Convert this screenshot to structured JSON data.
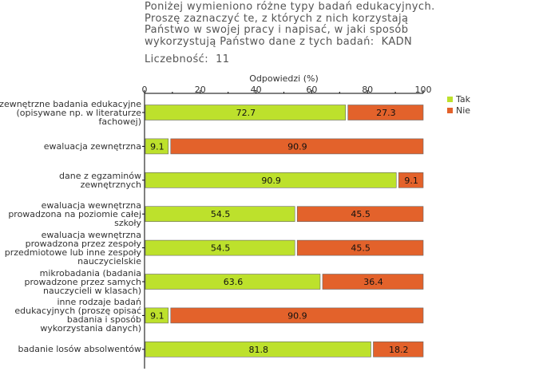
{
  "title_lines": [
    "Poniżej wymieniono różne typy badań edukacyjnych.",
    "Proszę zaznaczyć te, z których z nich korzystają",
    "Państwo w swojej pracy i napisać, w jaki sposób",
    "wykorzystują Państwo dane z tych badań:  KADN"
  ],
  "count_label": "Liczebność:",
  "count_value": "11",
  "colors": {
    "tak": "#bde12c",
    "nie": "#e3622b",
    "axis": "#000000",
    "grid": "#cccccc"
  },
  "chart_data": {
    "type": "bar",
    "orientation": "horizontal",
    "stacked": true,
    "xlabel": "Odpowiedzi (%)",
    "xlim": [
      0,
      100
    ],
    "xticks": [
      0,
      20,
      40,
      60,
      80,
      100
    ],
    "legend_position": "right",
    "categories": [
      [
        "zewnętrzne badania edukacyjne",
        "(opisywane np. w literaturze",
        "fachowej)"
      ],
      [
        "ewaluacja zewnętrzna"
      ],
      [
        "dane z egzaminów",
        "zewnętrznych"
      ],
      [
        "ewaluacja wewnętrzna",
        "prowadzona na poziomie całej",
        "szkoły"
      ],
      [
        "ewaluacja wewnętrzna",
        "prowadzona przez zespoły",
        "przedmiotowe lub inne zespoły",
        "nauczycielskie"
      ],
      [
        "mikrobadania (badania",
        "prowadzone przez samych",
        "nauczycieli w klasach)"
      ],
      [
        "inne rodzaje badań",
        "edukacyjnych (proszę opisać",
        "badania i sposób",
        "wykorzystania danych)"
      ],
      [
        "badanie losów absolwentów"
      ]
    ],
    "series": [
      {
        "name": "Tak",
        "values": [
          72.7,
          9.1,
          90.9,
          54.5,
          54.5,
          63.6,
          9.1,
          81.8
        ]
      },
      {
        "name": "Nie",
        "values": [
          27.3,
          90.9,
          9.1,
          45.5,
          45.5,
          36.4,
          90.9,
          18.2
        ]
      }
    ]
  }
}
